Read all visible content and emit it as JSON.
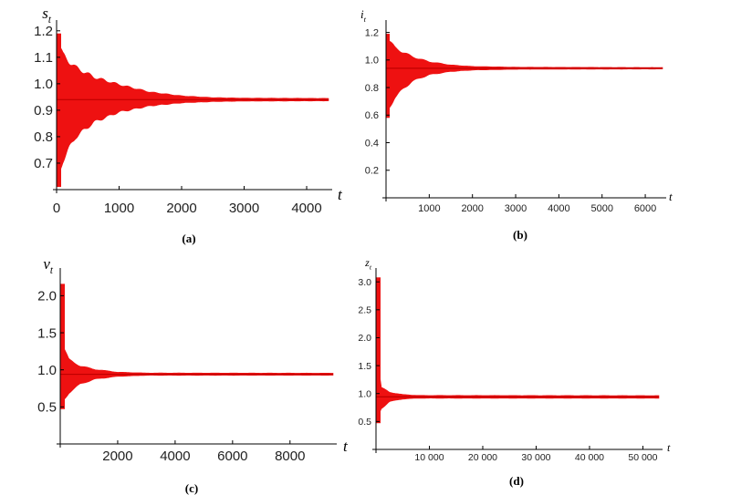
{
  "chart_data": [
    {
      "type": "line",
      "panel": "(a)",
      "caption": "(a)",
      "xlabel": "t",
      "ylabel": "s",
      "ylabel_sub": "t",
      "xlim": [
        0,
        4350
      ],
      "ylim": [
        0.6,
        1.22
      ],
      "xticks": [
        0,
        1000,
        2000,
        3000,
        4000
      ],
      "xtick_labels": [
        "0",
        "1000",
        "2000",
        "3000",
        "4000"
      ],
      "yticks": [
        0.7,
        0.8,
        0.9,
        1.0,
        1.1,
        1.2
      ],
      "ytick_labels": [
        "0.7",
        "0.8",
        "0.9",
        "1.0",
        "1.1",
        "1.2"
      ],
      "series": [
        {
          "color": "#ee1111",
          "equilibrium": 0.94,
          "envelope": [
            {
              "t": 0,
              "low": 0.61,
              "high": 1.19
            },
            {
              "t": 100,
              "low": 0.7,
              "high": 1.12
            },
            {
              "t": 300,
              "low": 0.79,
              "high": 1.07
            },
            {
              "t": 600,
              "low": 0.85,
              "high": 1.03
            },
            {
              "t": 1000,
              "low": 0.89,
              "high": 1.0
            },
            {
              "t": 1500,
              "low": 0.915,
              "high": 0.97
            },
            {
              "t": 2000,
              "low": 0.927,
              "high": 0.955
            },
            {
              "t": 2500,
              "low": 0.932,
              "high": 0.948
            },
            {
              "t": 3000,
              "low": 0.934,
              "high": 0.946
            },
            {
              "t": 4350,
              "low": 0.935,
              "high": 0.945
            }
          ]
        }
      ]
    },
    {
      "type": "line",
      "panel": "(b)",
      "caption": "(b)",
      "xlabel": "t",
      "ylabel": "i",
      "ylabel_sub": "t",
      "xlim": [
        0,
        6400
      ],
      "ylim": [
        0,
        1.25
      ],
      "xticks": [
        1000,
        2000,
        3000,
        4000,
        5000,
        6000
      ],
      "xtick_labels": [
        "1000",
        "2000",
        "3000",
        "4000",
        "5000",
        "6000"
      ],
      "yticks": [
        0.2,
        0.4,
        0.6,
        0.8,
        1.0,
        1.2
      ],
      "ytick_labels": [
        "0.2",
        "0.4",
        "0.6",
        "0.8",
        "1.0",
        "1.2"
      ],
      "series": [
        {
          "color": "#ee1111",
          "equilibrium": 0.94,
          "envelope": [
            {
              "t": 0,
              "low": 0.58,
              "high": 1.19
            },
            {
              "t": 200,
              "low": 0.72,
              "high": 1.1
            },
            {
              "t": 600,
              "low": 0.84,
              "high": 1.03
            },
            {
              "t": 1000,
              "low": 0.89,
              "high": 0.99
            },
            {
              "t": 1500,
              "low": 0.915,
              "high": 0.965
            },
            {
              "t": 2000,
              "low": 0.926,
              "high": 0.954
            },
            {
              "t": 3000,
              "low": 0.932,
              "high": 0.948
            },
            {
              "t": 6400,
              "low": 0.934,
              "high": 0.946
            }
          ]
        }
      ]
    },
    {
      "type": "line",
      "panel": "(c)",
      "caption": "(c)",
      "xlabel": "t",
      "ylabel": "v",
      "ylabel_sub": "t",
      "xlim": [
        0,
        9500
      ],
      "ylim": [
        0,
        2.3
      ],
      "xticks": [
        2000,
        4000,
        6000,
        8000
      ],
      "xtick_labels": [
        "2000",
        "4000",
        "6000",
        "8000"
      ],
      "yticks": [
        0.5,
        1.0,
        1.5,
        2.0
      ],
      "ytick_labels": [
        "0.5",
        "1.0",
        "1.5",
        "2.0"
      ],
      "series": [
        {
          "color": "#ee1111",
          "equilibrium": 0.94,
          "envelope": [
            {
              "t": 0,
              "low": 0.47,
              "high": 2.16
            },
            {
              "t": 100,
              "low": 0.55,
              "high": 1.35
            },
            {
              "t": 300,
              "low": 0.68,
              "high": 1.15
            },
            {
              "t": 700,
              "low": 0.8,
              "high": 1.06
            },
            {
              "t": 1200,
              "low": 0.87,
              "high": 1.01
            },
            {
              "t": 2000,
              "low": 0.91,
              "high": 0.97
            },
            {
              "t": 3000,
              "low": 0.925,
              "high": 0.958
            },
            {
              "t": 9500,
              "low": 0.926,
              "high": 0.956
            }
          ]
        }
      ]
    },
    {
      "type": "line",
      "panel": "(d)",
      "caption": "(d)",
      "xlabel": "t",
      "ylabel": "z",
      "ylabel_sub": "t",
      "xlim": [
        0,
        53000
      ],
      "ylim": [
        0,
        3.15
      ],
      "xticks": [
        10000,
        20000,
        30000,
        40000,
        50000
      ],
      "xtick_labels": [
        "10 000",
        "20 000",
        "30 000",
        "40 000",
        "50 000"
      ],
      "yticks": [
        0.5,
        1.0,
        1.5,
        2.0,
        2.5,
        3.0
      ],
      "ytick_labels": [
        "0.5",
        "1.0",
        "1.5",
        "2.0",
        "2.5",
        "3.0"
      ],
      "series": [
        {
          "color": "#ee1111",
          "equilibrium": 0.94,
          "envelope": [
            {
              "t": 0,
              "low": 0.47,
              "high": 3.08
            },
            {
              "t": 400,
              "low": 0.55,
              "high": 1.6
            },
            {
              "t": 1000,
              "low": 0.72,
              "high": 1.12
            },
            {
              "t": 2500,
              "low": 0.85,
              "high": 1.03
            },
            {
              "t": 5000,
              "low": 0.9,
              "high": 0.985
            },
            {
              "t": 8000,
              "low": 0.915,
              "high": 0.968
            },
            {
              "t": 53000,
              "low": 0.915,
              "high": 0.965
            }
          ]
        }
      ]
    }
  ]
}
